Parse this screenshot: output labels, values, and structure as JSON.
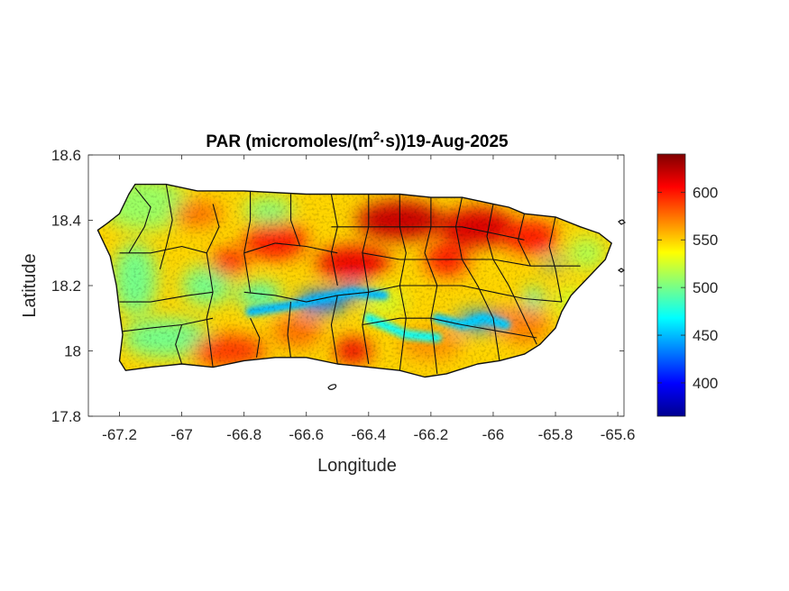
{
  "title": {
    "prefix": "PAR (micromoles/(m",
    "superscript": "2",
    "suffix": "·s))19-Aug-2025"
  },
  "chart_data": {
    "type": "heatmap",
    "xlabel": "Longitude",
    "ylabel": "Latitude",
    "xlim": [
      -67.3,
      -65.58
    ],
    "ylim": [
      17.8,
      18.6
    ],
    "x_ticks": [
      {
        "value": -67.2,
        "label": "-67.2"
      },
      {
        "value": -67.0,
        "label": "-67"
      },
      {
        "value": -66.8,
        "label": "-66.8"
      },
      {
        "value": -66.6,
        "label": "-66.6"
      },
      {
        "value": -66.4,
        "label": "-66.4"
      },
      {
        "value": -66.2,
        "label": "-66.2"
      },
      {
        "value": -66.0,
        "label": "-66"
      },
      {
        "value": -65.8,
        "label": "-65.8"
      },
      {
        "value": -65.6,
        "label": "-65.6"
      }
    ],
    "y_ticks": [
      {
        "value": 17.8,
        "label": "17.8"
      },
      {
        "value": 18.0,
        "label": "18"
      },
      {
        "value": 18.2,
        "label": "18.2"
      },
      {
        "value": 18.4,
        "label": "18.4"
      },
      {
        "value": 18.6,
        "label": "18.6"
      }
    ],
    "colorbar": {
      "colormap": "jet",
      "range": [
        365,
        640
      ],
      "ticks": [
        {
          "value": 400,
          "label": "400"
        },
        {
          "value": 450,
          "label": "450"
        },
        {
          "value": 500,
          "label": "500"
        },
        {
          "value": 550,
          "label": "550"
        },
        {
          "value": 600,
          "label": "600"
        }
      ]
    },
    "island_outline": [
      [
        -67.27,
        18.37
      ],
      [
        -67.24,
        18.39
      ],
      [
        -67.2,
        18.42
      ],
      [
        -67.17,
        18.48
      ],
      [
        -67.15,
        18.51
      ],
      [
        -67.05,
        18.51
      ],
      [
        -66.95,
        18.49
      ],
      [
        -66.8,
        18.49
      ],
      [
        -66.6,
        18.48
      ],
      [
        -66.5,
        18.48
      ],
      [
        -66.4,
        18.48
      ],
      [
        -66.3,
        18.48
      ],
      [
        -66.2,
        18.47
      ],
      [
        -66.1,
        18.47
      ],
      [
        -66.0,
        18.45
      ],
      [
        -65.95,
        18.44
      ],
      [
        -65.9,
        18.42
      ],
      [
        -65.8,
        18.41
      ],
      [
        -65.72,
        18.38
      ],
      [
        -65.66,
        18.36
      ],
      [
        -65.62,
        18.33
      ],
      [
        -65.64,
        18.28
      ],
      [
        -65.68,
        18.24
      ],
      [
        -65.75,
        18.17
      ],
      [
        -65.78,
        18.12
      ],
      [
        -65.8,
        18.07
      ],
      [
        -65.85,
        18.02
      ],
      [
        -65.9,
        17.99
      ],
      [
        -65.98,
        17.97
      ],
      [
        -66.05,
        17.96
      ],
      [
        -66.15,
        17.93
      ],
      [
        -66.22,
        17.92
      ],
      [
        -66.3,
        17.94
      ],
      [
        -66.4,
        17.95
      ],
      [
        -66.5,
        17.96
      ],
      [
        -66.6,
        17.98
      ],
      [
        -66.7,
        17.98
      ],
      [
        -66.8,
        17.97
      ],
      [
        -66.9,
        17.95
      ],
      [
        -67.0,
        17.96
      ],
      [
        -67.1,
        17.95
      ],
      [
        -67.18,
        17.94
      ],
      [
        -67.2,
        17.97
      ],
      [
        -67.19,
        18.05
      ],
      [
        -67.2,
        18.12
      ],
      [
        -67.21,
        18.2
      ],
      [
        -67.23,
        18.29
      ],
      [
        -67.27,
        18.37
      ]
    ],
    "zones": [
      {
        "shape": "ellipse",
        "cx": -67.12,
        "cy": 18.45,
        "rx": 0.14,
        "ry": 0.08,
        "value": 510
      },
      {
        "shape": "ellipse",
        "cx": -67.15,
        "cy": 18.22,
        "rx": 0.07,
        "ry": 0.11,
        "value": 500
      },
      {
        "shape": "ellipse",
        "cx": -67.05,
        "cy": 18.04,
        "rx": 0.14,
        "ry": 0.06,
        "value": 500
      },
      {
        "shape": "ellipse",
        "cx": -66.92,
        "cy": 18.2,
        "rx": 0.08,
        "ry": 0.06,
        "value": 500
      },
      {
        "shape": "ellipse",
        "cx": -66.85,
        "cy": 18.0,
        "rx": 0.12,
        "ry": 0.05,
        "value": 590
      },
      {
        "shape": "ellipse",
        "cx": -66.95,
        "cy": 18.42,
        "rx": 0.08,
        "ry": 0.04,
        "value": 575
      },
      {
        "shape": "ellipse",
        "cx": -66.7,
        "cy": 18.34,
        "rx": 0.1,
        "ry": 0.06,
        "value": 600
      },
      {
        "shape": "ellipse",
        "cx": -66.72,
        "cy": 18.43,
        "rx": 0.08,
        "ry": 0.04,
        "value": 505
      },
      {
        "shape": "ellipse",
        "cx": -66.45,
        "cy": 18.27,
        "rx": 0.12,
        "ry": 0.05,
        "value": 610
      },
      {
        "shape": "ellipse",
        "cx": -66.3,
        "cy": 18.4,
        "rx": 0.14,
        "ry": 0.06,
        "value": 620
      },
      {
        "shape": "ellipse",
        "cx": -66.05,
        "cy": 18.38,
        "rx": 0.12,
        "ry": 0.06,
        "value": 615
      },
      {
        "shape": "ellipse",
        "cx": -65.88,
        "cy": 18.35,
        "rx": 0.09,
        "ry": 0.05,
        "value": 600
      },
      {
        "shape": "ellipse",
        "cx": -66.15,
        "cy": 18.28,
        "rx": 0.07,
        "ry": 0.05,
        "value": 600
      },
      {
        "shape": "ellipse",
        "cx": -65.7,
        "cy": 18.3,
        "rx": 0.06,
        "ry": 0.05,
        "value": 515
      },
      {
        "shape": "ellipse",
        "cx": -65.75,
        "cy": 18.15,
        "rx": 0.05,
        "ry": 0.05,
        "value": 525
      },
      {
        "shape": "ellipse",
        "cx": -65.9,
        "cy": 18.08,
        "rx": 0.08,
        "ry": 0.06,
        "value": 570
      },
      {
        "shape": "ellipse",
        "cx": -66.2,
        "cy": 18.02,
        "rx": 0.1,
        "ry": 0.05,
        "value": 565
      },
      {
        "shape": "ellipse",
        "cx": -66.45,
        "cy": 18.0,
        "rx": 0.06,
        "ry": 0.04,
        "value": 610
      },
      {
        "shape": "ellipse",
        "cx": -66.63,
        "cy": 18.06,
        "rx": 0.08,
        "ry": 0.05,
        "value": 575
      },
      {
        "shape": "ellipse",
        "cx": -66.35,
        "cy": 18.15,
        "rx": 0.07,
        "ry": 0.04,
        "value": 525
      },
      {
        "shape": "ellipse",
        "cx": -66.75,
        "cy": 18.17,
        "rx": 0.07,
        "ry": 0.04,
        "value": 490
      },
      {
        "shape": "ellipse",
        "cx": -66.85,
        "cy": 18.27,
        "rx": 0.06,
        "ry": 0.04,
        "value": 600
      },
      {
        "shape": "ellipse",
        "cx": -66.55,
        "cy": 18.15,
        "rx": 0.08,
        "ry": 0.035,
        "value": 430
      },
      {
        "shape": "ellipse",
        "cx": -66.45,
        "cy": 18.18,
        "rx": 0.05,
        "ry": 0.02,
        "value": 425
      },
      {
        "shape": "ellipse",
        "cx": -66.05,
        "cy": 18.09,
        "rx": 0.07,
        "ry": 0.03,
        "value": 440
      },
      {
        "shape": "ellipse",
        "cx": -66.0,
        "cy": 18.1,
        "rx": 0.025,
        "ry": 0.02,
        "value": 395
      },
      {
        "shape": "ellipse",
        "cx": -65.81,
        "cy": 18.27,
        "rx": 0.035,
        "ry": 0.015,
        "value": 440
      },
      {
        "shape": "ellipse",
        "cx": -65.87,
        "cy": 18.16,
        "rx": 0.03,
        "ry": 0.03,
        "value": 480
      }
    ],
    "ridge_bands": [
      {
        "points": [
          [
            -66.78,
            18.12
          ],
          [
            -66.65,
            18.14
          ],
          [
            -66.55,
            18.16
          ],
          [
            -66.45,
            18.18
          ],
          [
            -66.35,
            18.17
          ]
        ],
        "value": 450
      },
      {
        "points": [
          [
            -66.18,
            18.1
          ],
          [
            -66.1,
            18.08
          ],
          [
            -66.03,
            18.1
          ],
          [
            -65.96,
            18.08
          ]
        ],
        "value": 455
      },
      {
        "points": [
          [
            -66.4,
            18.1
          ],
          [
            -66.28,
            18.05
          ],
          [
            -66.18,
            18.04
          ]
        ],
        "value": 470
      }
    ],
    "borders": [
      [
        [
          -67.15,
          18.5
        ],
        [
          -67.1,
          18.44
        ],
        [
          -67.12,
          18.38
        ],
        [
          -67.17,
          18.3
        ]
      ],
      [
        [
          -67.05,
          18.51
        ],
        [
          -67.03,
          18.4
        ],
        [
          -67.05,
          18.32
        ],
        [
          -67.07,
          18.25
        ]
      ],
      [
        [
          -67.2,
          18.3
        ],
        [
          -67.1,
          18.3
        ],
        [
          -67.0,
          18.32
        ],
        [
          -66.92,
          18.3
        ]
      ],
      [
        [
          -67.2,
          18.15
        ],
        [
          -67.1,
          18.15
        ],
        [
          -66.98,
          18.17
        ],
        [
          -66.9,
          18.18
        ]
      ],
      [
        [
          -67.19,
          18.06
        ],
        [
          -67.1,
          18.07
        ],
        [
          -67.0,
          18.08
        ],
        [
          -66.9,
          18.1
        ]
      ],
      [
        [
          -67.0,
          18.08
        ],
        [
          -67.02,
          18.02
        ],
        [
          -67.0,
          17.96
        ]
      ],
      [
        [
          -66.9,
          18.45
        ],
        [
          -66.88,
          18.38
        ],
        [
          -66.92,
          18.3
        ],
        [
          -66.9,
          18.18
        ],
        [
          -66.92,
          18.1
        ],
        [
          -66.9,
          17.95
        ]
      ],
      [
        [
          -66.78,
          18.49
        ],
        [
          -66.78,
          18.4
        ],
        [
          -66.8,
          18.3
        ],
        [
          -66.78,
          18.18
        ]
      ],
      [
        [
          -66.8,
          18.3
        ],
        [
          -66.7,
          18.33
        ],
        [
          -66.6,
          18.32
        ],
        [
          -66.5,
          18.3
        ]
      ],
      [
        [
          -66.65,
          18.48
        ],
        [
          -66.65,
          18.4
        ],
        [
          -66.62,
          18.32
        ]
      ],
      [
        [
          -66.8,
          18.18
        ],
        [
          -66.7,
          18.17
        ],
        [
          -66.6,
          18.15
        ],
        [
          -66.5,
          18.17
        ],
        [
          -66.4,
          18.18
        ]
      ],
      [
        [
          -66.78,
          18.1
        ],
        [
          -66.75,
          18.04
        ],
        [
          -66.76,
          17.98
        ]
      ],
      [
        [
          -66.65,
          18.15
        ],
        [
          -66.66,
          18.05
        ],
        [
          -66.65,
          17.98
        ]
      ],
      [
        [
          -66.52,
          18.48
        ],
        [
          -66.5,
          18.38
        ],
        [
          -66.52,
          18.3
        ],
        [
          -66.5,
          18.2
        ]
      ],
      [
        [
          -66.4,
          18.48
        ],
        [
          -66.4,
          18.38
        ],
        [
          -66.42,
          18.3
        ],
        [
          -66.4,
          18.18
        ],
        [
          -66.42,
          18.08
        ],
        [
          -66.4,
          17.96
        ]
      ],
      [
        [
          -66.5,
          18.17
        ],
        [
          -66.52,
          18.08
        ],
        [
          -66.5,
          17.96
        ]
      ],
      [
        [
          -66.3,
          18.48
        ],
        [
          -66.3,
          18.38
        ],
        [
          -66.28,
          18.3
        ],
        [
          -66.3,
          18.2
        ],
        [
          -66.28,
          18.1
        ],
        [
          -66.3,
          17.94
        ]
      ],
      [
        [
          -66.2,
          18.47
        ],
        [
          -66.2,
          18.38
        ],
        [
          -66.22,
          18.3
        ],
        [
          -66.18,
          18.2
        ],
        [
          -66.2,
          18.1
        ],
        [
          -66.18,
          17.93
        ]
      ],
      [
        [
          -66.1,
          18.47
        ],
        [
          -66.12,
          18.38
        ],
        [
          -66.1,
          18.28
        ],
        [
          -66.05,
          18.2
        ]
      ],
      [
        [
          -66.0,
          18.45
        ],
        [
          -66.02,
          18.35
        ],
        [
          -66.0,
          18.28
        ],
        [
          -65.95,
          18.2
        ]
      ],
      [
        [
          -65.9,
          18.42
        ],
        [
          -65.92,
          18.34
        ],
        [
          -65.88,
          18.26
        ]
      ],
      [
        [
          -65.8,
          18.41
        ],
        [
          -65.82,
          18.32
        ],
        [
          -65.8,
          18.25
        ],
        [
          -65.78,
          18.15
        ]
      ],
      [
        [
          -66.52,
          18.38
        ],
        [
          -66.4,
          18.38
        ],
        [
          -66.3,
          18.38
        ],
        [
          -66.2,
          18.38
        ],
        [
          -66.1,
          18.38
        ],
        [
          -66.0,
          18.36
        ],
        [
          -65.9,
          18.34
        ]
      ],
      [
        [
          -66.42,
          18.3
        ],
        [
          -66.3,
          18.28
        ],
        [
          -66.2,
          18.28
        ],
        [
          -66.1,
          18.28
        ],
        [
          -66.0,
          18.28
        ],
        [
          -65.88,
          18.26
        ],
        [
          -65.72,
          18.26
        ]
      ],
      [
        [
          -66.4,
          18.18
        ],
        [
          -66.3,
          18.2
        ],
        [
          -66.2,
          18.2
        ],
        [
          -66.1,
          18.2
        ],
        [
          -66.0,
          18.18
        ],
        [
          -65.9,
          18.16
        ],
        [
          -65.78,
          18.15
        ]
      ],
      [
        [
          -66.42,
          18.08
        ],
        [
          -66.3,
          18.1
        ],
        [
          -66.2,
          18.1
        ],
        [
          -66.1,
          18.08
        ],
        [
          -65.98,
          18.06
        ],
        [
          -65.86,
          18.04
        ]
      ],
      [
        [
          -66.05,
          18.2
        ],
        [
          -66.0,
          18.1
        ],
        [
          -65.98,
          17.97
        ]
      ],
      [
        [
          -65.95,
          18.2
        ],
        [
          -65.9,
          18.1
        ],
        [
          -65.86,
          18.02
        ]
      ]
    ]
  }
}
